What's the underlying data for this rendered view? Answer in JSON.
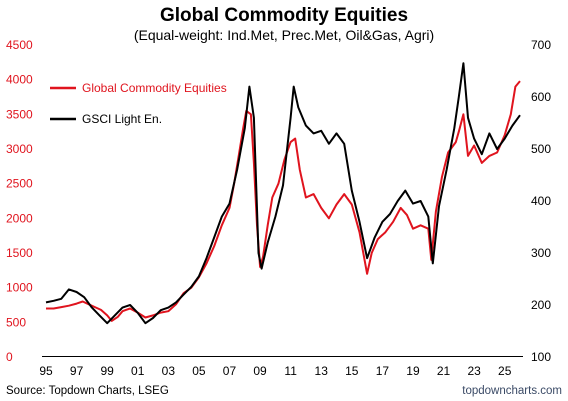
{
  "chart_data": {
    "type": "line",
    "title": "Global Commodity Equities",
    "subtitle": "(Equal-weight: Ind.Met, Prec.Met, Oil&Gas, Agri)",
    "x_tick_labels": [
      "95",
      "97",
      "99",
      "01",
      "03",
      "05",
      "07",
      "09",
      "11",
      "13",
      "15",
      "17",
      "19",
      "21",
      "23",
      "25"
    ],
    "x_range": [
      1995,
      2026
    ],
    "y_left": {
      "range": [
        0,
        4500
      ],
      "ticks": [
        "0",
        "500",
        "1000",
        "1500",
        "2000",
        "2500",
        "3000",
        "3500",
        "4000",
        "4500"
      ],
      "color": "#e0141e"
    },
    "y_right": {
      "range": [
        100,
        700
      ],
      "ticks": [
        "100",
        "200",
        "300",
        "400",
        "500",
        "600",
        "700"
      ],
      "color": "#000000"
    },
    "legend_position": "top-left",
    "grid": false,
    "series": [
      {
        "name": "Global Commodity Equities",
        "axis": "left",
        "color": "#e0141e",
        "points": [
          [
            1995.0,
            700
          ],
          [
            1995.5,
            700
          ],
          [
            1996.0,
            720
          ],
          [
            1996.5,
            740
          ],
          [
            1997.0,
            770
          ],
          [
            1997.4,
            800
          ],
          [
            1997.8,
            760
          ],
          [
            1998.2,
            720
          ],
          [
            1998.6,
            680
          ],
          [
            1999.0,
            600
          ],
          [
            1999.3,
            520
          ],
          [
            1999.7,
            580
          ],
          [
            2000.0,
            660
          ],
          [
            2000.5,
            700
          ],
          [
            2001.0,
            640
          ],
          [
            2001.5,
            570
          ],
          [
            2002.0,
            600
          ],
          [
            2002.5,
            640
          ],
          [
            2003.0,
            660
          ],
          [
            2003.5,
            760
          ],
          [
            2004.0,
            920
          ],
          [
            2004.5,
            1000
          ],
          [
            2005.0,
            1150
          ],
          [
            2005.5,
            1350
          ],
          [
            2006.0,
            1600
          ],
          [
            2006.5,
            1900
          ],
          [
            2007.0,
            2150
          ],
          [
            2007.3,
            2500
          ],
          [
            2007.6,
            2900
          ],
          [
            2007.9,
            3300
          ],
          [
            2008.1,
            3550
          ],
          [
            2008.4,
            3500
          ],
          [
            2008.6,
            2800
          ],
          [
            2008.8,
            1900
          ],
          [
            2009.0,
            1300
          ],
          [
            2009.2,
            1450
          ],
          [
            2009.5,
            1900
          ],
          [
            2009.8,
            2300
          ],
          [
            2010.2,
            2500
          ],
          [
            2010.6,
            2850
          ],
          [
            2011.0,
            3100
          ],
          [
            2011.3,
            3150
          ],
          [
            2011.6,
            2700
          ],
          [
            2012.0,
            2300
          ],
          [
            2012.5,
            2350
          ],
          [
            2013.0,
            2150
          ],
          [
            2013.5,
            2000
          ],
          [
            2014.0,
            2200
          ],
          [
            2014.5,
            2350
          ],
          [
            2015.0,
            2200
          ],
          [
            2015.5,
            1800
          ],
          [
            2016.0,
            1200
          ],
          [
            2016.3,
            1500
          ],
          [
            2016.7,
            1700
          ],
          [
            2017.2,
            1800
          ],
          [
            2017.7,
            1950
          ],
          [
            2018.2,
            2150
          ],
          [
            2018.6,
            2050
          ],
          [
            2019.0,
            1850
          ],
          [
            2019.5,
            1900
          ],
          [
            2020.0,
            1850
          ],
          [
            2020.2,
            1400
          ],
          [
            2020.5,
            2100
          ],
          [
            2020.9,
            2600
          ],
          [
            2021.3,
            2950
          ],
          [
            2021.8,
            3100
          ],
          [
            2022.0,
            3250
          ],
          [
            2022.3,
            3500
          ],
          [
            2022.6,
            2900
          ],
          [
            2023.0,
            3050
          ],
          [
            2023.5,
            2800
          ],
          [
            2024.0,
            2900
          ],
          [
            2024.5,
            2950
          ],
          [
            2025.0,
            3200
          ],
          [
            2025.4,
            3500
          ],
          [
            2025.7,
            3900
          ],
          [
            2026.0,
            3980
          ]
        ]
      },
      {
        "name": "GSCI Light En.",
        "axis": "right",
        "color": "#000000",
        "points": [
          [
            1995.0,
            205
          ],
          [
            1995.5,
            208
          ],
          [
            1996.0,
            212
          ],
          [
            1996.5,
            230
          ],
          [
            1997.0,
            225
          ],
          [
            1997.5,
            215
          ],
          [
            1998.0,
            195
          ],
          [
            1998.5,
            180
          ],
          [
            1999.0,
            165
          ],
          [
            1999.5,
            180
          ],
          [
            2000.0,
            195
          ],
          [
            2000.5,
            200
          ],
          [
            2001.0,
            185
          ],
          [
            2001.5,
            165
          ],
          [
            2002.0,
            175
          ],
          [
            2002.5,
            190
          ],
          [
            2003.0,
            195
          ],
          [
            2003.5,
            205
          ],
          [
            2004.0,
            220
          ],
          [
            2004.5,
            235
          ],
          [
            2005.0,
            255
          ],
          [
            2005.5,
            290
          ],
          [
            2006.0,
            330
          ],
          [
            2006.5,
            370
          ],
          [
            2007.0,
            395
          ],
          [
            2007.5,
            460
          ],
          [
            2008.0,
            540
          ],
          [
            2008.3,
            620
          ],
          [
            2008.6,
            560
          ],
          [
            2008.9,
            300
          ],
          [
            2009.1,
            270
          ],
          [
            2009.5,
            320
          ],
          [
            2010.0,
            370
          ],
          [
            2010.5,
            430
          ],
          [
            2011.0,
            560
          ],
          [
            2011.2,
            620
          ],
          [
            2011.5,
            580
          ],
          [
            2012.0,
            545
          ],
          [
            2012.5,
            530
          ],
          [
            2013.0,
            535
          ],
          [
            2013.5,
            510
          ],
          [
            2014.0,
            530
          ],
          [
            2014.5,
            510
          ],
          [
            2015.0,
            420
          ],
          [
            2015.5,
            360
          ],
          [
            2016.0,
            290
          ],
          [
            2016.5,
            330
          ],
          [
            2017.0,
            360
          ],
          [
            2017.5,
            375
          ],
          [
            2018.0,
            400
          ],
          [
            2018.5,
            420
          ],
          [
            2019.0,
            395
          ],
          [
            2019.5,
            400
          ],
          [
            2020.0,
            370
          ],
          [
            2020.3,
            280
          ],
          [
            2020.7,
            390
          ],
          [
            2021.2,
            460
          ],
          [
            2021.7,
            540
          ],
          [
            2022.0,
            600
          ],
          [
            2022.3,
            665
          ],
          [
            2022.6,
            560
          ],
          [
            2023.0,
            520
          ],
          [
            2023.5,
            490
          ],
          [
            2024.0,
            530
          ],
          [
            2024.5,
            500
          ],
          [
            2025.0,
            520
          ],
          [
            2025.5,
            545
          ],
          [
            2026.0,
            565
          ]
        ]
      }
    ],
    "source": "Source: Topdown Charts, LSEG",
    "brand": "topdowncharts.com"
  }
}
